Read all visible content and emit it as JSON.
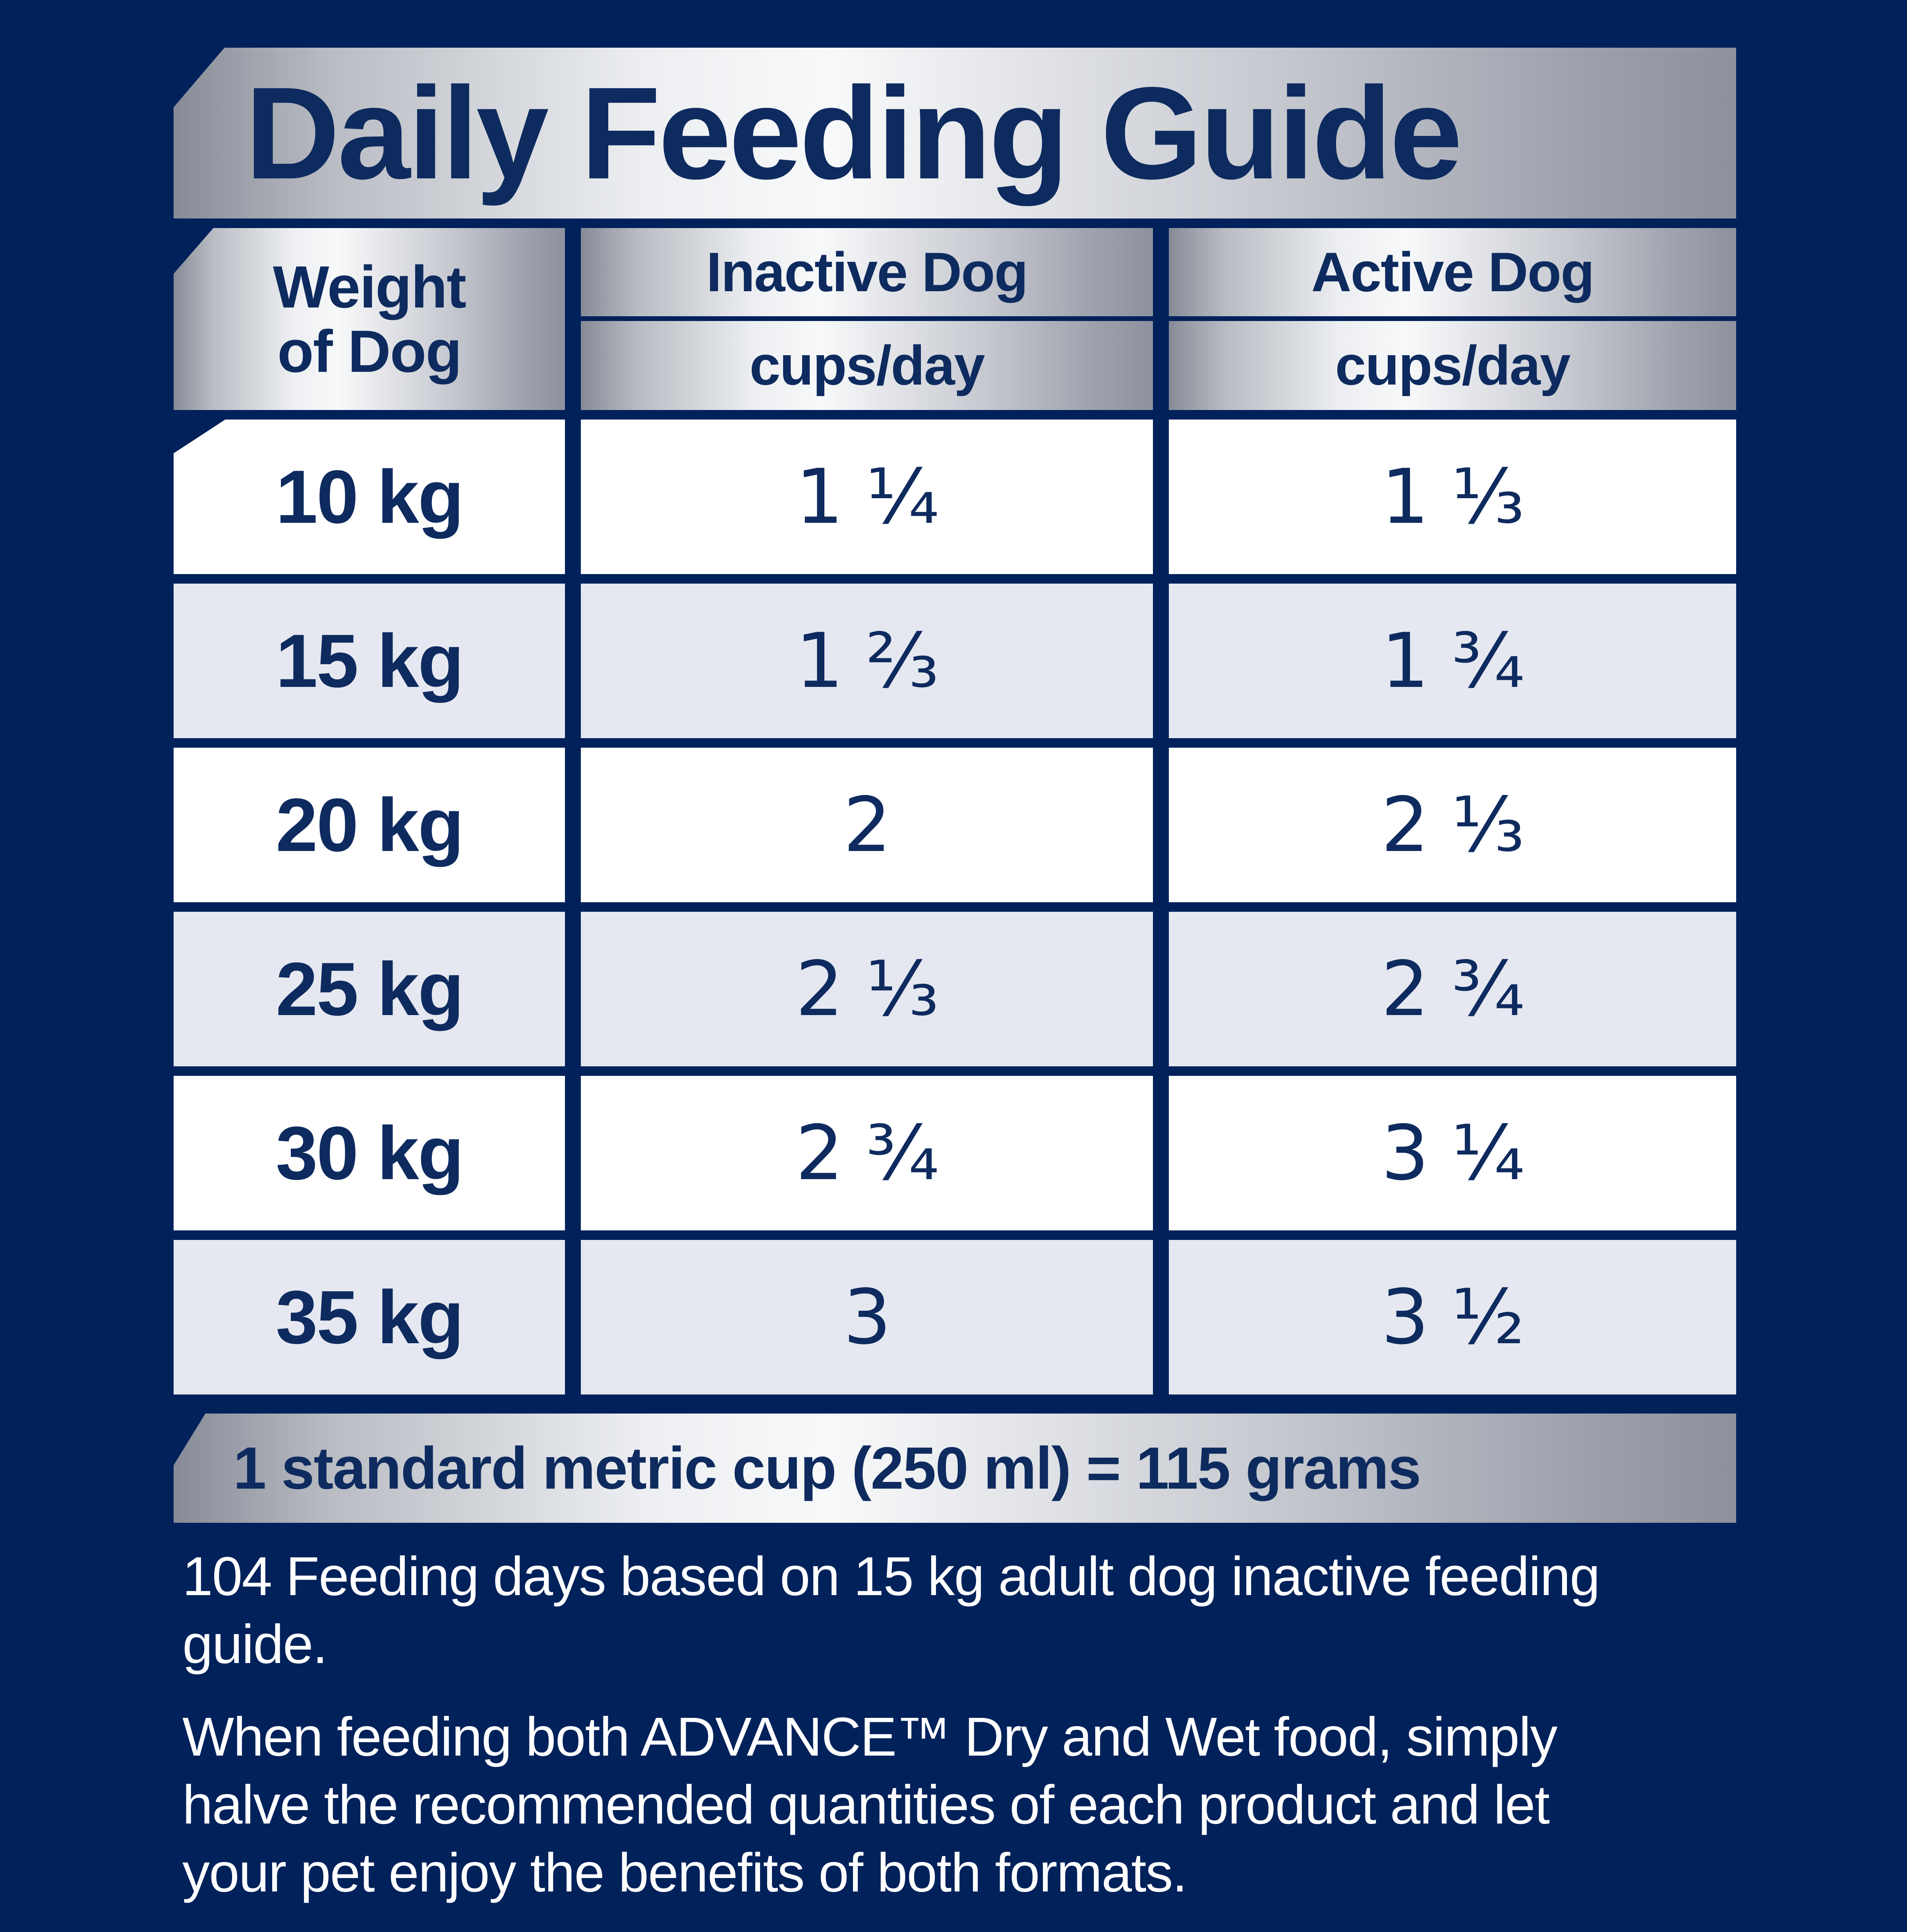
{
  "header": {
    "title": "Daily Feeding Guide"
  },
  "table": {
    "weight_column": {
      "line1": "Weight",
      "line2": "of Dog"
    },
    "columns": [
      {
        "label": "Inactive Dog",
        "unit": "cups/day"
      },
      {
        "label": "Active Dog",
        "unit": "cups/day"
      }
    ],
    "rows": [
      {
        "weight": "10 kg",
        "inactive": "1 ¼",
        "active": "1 ⅓"
      },
      {
        "weight": "15 kg",
        "inactive": "1 ⅔",
        "active": "1 ¾"
      },
      {
        "weight": "20 kg",
        "inactive": "2",
        "active": "2 ⅓"
      },
      {
        "weight": "25 kg",
        "inactive": "2 ⅓",
        "active": "2 ¾"
      },
      {
        "weight": "30 kg",
        "inactive": "2 ¾",
        "active": "3 ¼"
      },
      {
        "weight": "35 kg",
        "inactive": "3",
        "active": "3 ½"
      }
    ]
  },
  "footnote": "1 standard metric cup (250 ml) = 115 grams",
  "notes": [
    {
      "lines": [
        "104 Feeding days based on 15 kg adult dog inactive feeding",
        "guide."
      ]
    },
    {
      "lines": [
        "When feeding both ADVANCE™ Dry and Wet food, simply",
        "halve the recommended quantities of each product and let",
        "your pet enjoy the benefits of both formats."
      ]
    }
  ],
  "colors": {
    "background": "#00215a",
    "text_navy": "#0e2b5f",
    "row_white": "#ffffff",
    "row_alt": "#e6e8f1",
    "metal_light": "#f8f9fa",
    "metal_dark": "#8d919d",
    "note_text": "#ffffff"
  }
}
